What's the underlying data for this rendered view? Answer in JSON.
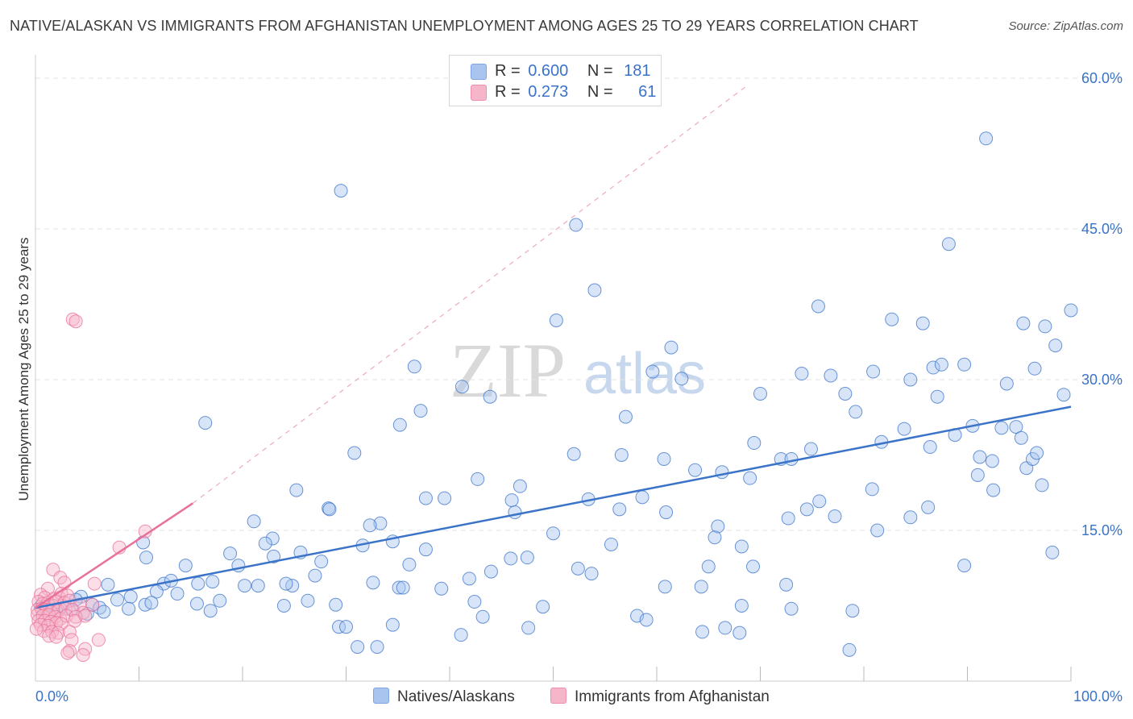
{
  "title": "NATIVE/ALASKAN VS IMMIGRANTS FROM AFGHANISTAN UNEMPLOYMENT AMONG AGES 25 TO 29 YEARS CORRELATION CHART",
  "source": "Source: ZipAtlas.com",
  "watermark": {
    "zip": "ZIP",
    "atlas": "atlas"
  },
  "legend": {
    "rows": [
      {
        "r_label": "R =",
        "r_value": "0.600",
        "n_label": "N =",
        "n_value": "181",
        "color": "#a9c5ef"
      },
      {
        "r_label": "R =",
        "r_value": "0.273",
        "n_label": "N =",
        "n_value": "61",
        "color": "#f6b6c9"
      }
    ],
    "bottom": [
      "Natives/Alaskans",
      "Immigrants from Afghanistan"
    ]
  },
  "chart_data": {
    "type": "scatter",
    "title": "NATIVE/ALASKAN VS IMMIGRANTS FROM AFGHANISTAN UNEMPLOYMENT AMONG AGES 25 TO 29 YEARS CORRELATION CHART",
    "xlabel": "",
    "ylabel": "Unemployment Among Ages 25 to 29 years",
    "xlim": [
      0,
      100
    ],
    "ylim": [
      0,
      60
    ],
    "x_tick_labels": [
      "0.0%",
      "100.0%"
    ],
    "y_ticks": [
      15,
      30,
      45,
      60
    ],
    "y_tick_labels": [
      "15.0%",
      "30.0%",
      "45.0%",
      "60.0%"
    ],
    "colors": {
      "natives": "#3b73c8",
      "natives_fill": "#a9c5ef",
      "afghan": "#e8709a",
      "afghan_fill": "#f6b6c9",
      "tick": "#3b73c8",
      "grid": "#e3e3e3"
    },
    "series": [
      {
        "name": "Natives/Alaskans",
        "r": 0.6,
        "n": 181,
        "trend": {
          "x": [
            0,
            100
          ],
          "y": [
            7.3,
            27.3
          ]
        },
        "points": [
          [
            91.8,
            54.0
          ],
          [
            29.5,
            48.8
          ],
          [
            52.2,
            45.4
          ],
          [
            88.2,
            43.5
          ],
          [
            54.0,
            38.9
          ],
          [
            75.6,
            37.3
          ],
          [
            50.3,
            35.9
          ],
          [
            82.7,
            36.0
          ],
          [
            85.7,
            35.6
          ],
          [
            95.4,
            35.6
          ],
          [
            97.5,
            35.3
          ],
          [
            100.0,
            36.9
          ],
          [
            98.5,
            33.4
          ],
          [
            61.4,
            33.2
          ],
          [
            36.6,
            31.3
          ],
          [
            41.2,
            29.3
          ],
          [
            43.9,
            28.3
          ],
          [
            57.0,
            26.3
          ],
          [
            35.2,
            25.5
          ],
          [
            37.2,
            26.9
          ],
          [
            16.4,
            25.7
          ],
          [
            59.6,
            30.8
          ],
          [
            62.4,
            30.1
          ],
          [
            70.0,
            28.6
          ],
          [
            74.0,
            30.6
          ],
          [
            76.8,
            30.4
          ],
          [
            78.2,
            28.6
          ],
          [
            80.9,
            30.8
          ],
          [
            84.5,
            30.0
          ],
          [
            86.7,
            31.2
          ],
          [
            87.5,
            31.5
          ],
          [
            89.7,
            31.5
          ],
          [
            96.5,
            31.1
          ],
          [
            99.3,
            28.5
          ],
          [
            93.8,
            29.6
          ],
          [
            79.2,
            26.8
          ],
          [
            83.9,
            25.1
          ],
          [
            87.1,
            28.3
          ],
          [
            88.8,
            24.5
          ],
          [
            90.5,
            25.4
          ],
          [
            93.3,
            25.2
          ],
          [
            94.7,
            25.3
          ],
          [
            95.2,
            24.2
          ],
          [
            69.4,
            23.7
          ],
          [
            74.9,
            23.1
          ],
          [
            72.0,
            22.1
          ],
          [
            73.0,
            22.1
          ],
          [
            81.7,
            23.8
          ],
          [
            86.4,
            23.3
          ],
          [
            91.2,
            22.3
          ],
          [
            92.4,
            21.9
          ],
          [
            95.7,
            21.2
          ],
          [
            96.3,
            22.1
          ],
          [
            96.7,
            22.7
          ],
          [
            30.8,
            22.7
          ],
          [
            52.0,
            22.6
          ],
          [
            56.6,
            22.5
          ],
          [
            60.7,
            22.1
          ],
          [
            63.7,
            21.0
          ],
          [
            66.3,
            20.8
          ],
          [
            69.0,
            20.2
          ],
          [
            42.7,
            20.1
          ],
          [
            46.8,
            19.4
          ],
          [
            91.0,
            20.5
          ],
          [
            92.5,
            19.0
          ],
          [
            97.2,
            19.5
          ],
          [
            80.8,
            19.1
          ],
          [
            25.2,
            19.0
          ],
          [
            37.7,
            18.2
          ],
          [
            39.5,
            18.2
          ],
          [
            46.0,
            18.0
          ],
          [
            53.4,
            18.1
          ],
          [
            58.6,
            18.3
          ],
          [
            75.7,
            17.9
          ],
          [
            74.5,
            17.1
          ],
          [
            86.2,
            17.3
          ],
          [
            28.3,
            17.2
          ],
          [
            28.4,
            17.1
          ],
          [
            56.4,
            17.1
          ],
          [
            60.9,
            16.8
          ],
          [
            46.3,
            16.8
          ],
          [
            77.2,
            16.4
          ],
          [
            72.7,
            16.2
          ],
          [
            84.5,
            16.3
          ],
          [
            21.1,
            15.9
          ],
          [
            33.3,
            15.7
          ],
          [
            32.3,
            15.5
          ],
          [
            65.9,
            15.4
          ],
          [
            81.3,
            15.0
          ],
          [
            50.0,
            14.7
          ],
          [
            65.6,
            14.3
          ],
          [
            10.4,
            13.8
          ],
          [
            22.9,
            14.2
          ],
          [
            22.2,
            13.7
          ],
          [
            31.6,
            13.5
          ],
          [
            34.5,
            13.9
          ],
          [
            55.6,
            13.6
          ],
          [
            68.2,
            13.4
          ],
          [
            37.7,
            13.1
          ],
          [
            18.8,
            12.7
          ],
          [
            23.0,
            12.4
          ],
          [
            25.6,
            12.8
          ],
          [
            10.7,
            12.3
          ],
          [
            45.9,
            12.2
          ],
          [
            47.5,
            12.3
          ],
          [
            98.2,
            12.8
          ],
          [
            19.6,
            11.5
          ],
          [
            27.6,
            11.9
          ],
          [
            14.5,
            11.5
          ],
          [
            36.1,
            11.6
          ],
          [
            89.7,
            11.5
          ],
          [
            65.0,
            11.4
          ],
          [
            69.3,
            11.4
          ],
          [
            52.4,
            11.2
          ],
          [
            53.7,
            10.7
          ],
          [
            44.0,
            10.9
          ],
          [
            27.0,
            10.5
          ],
          [
            12.4,
            9.7
          ],
          [
            15.7,
            9.7
          ],
          [
            17.1,
            9.9
          ],
          [
            7.0,
            9.6
          ],
          [
            13.1,
            10.0
          ],
          [
            20.2,
            9.5
          ],
          [
            21.5,
            9.5
          ],
          [
            24.8,
            9.5
          ],
          [
            24.2,
            9.7
          ],
          [
            32.6,
            9.8
          ],
          [
            35.1,
            9.3
          ],
          [
            35.5,
            9.3
          ],
          [
            39.2,
            9.2
          ],
          [
            41.9,
            10.2
          ],
          [
            60.8,
            9.4
          ],
          [
            64.3,
            9.4
          ],
          [
            72.5,
            9.6
          ],
          [
            11.7,
            8.9
          ],
          [
            13.7,
            8.7
          ],
          [
            9.2,
            8.4
          ],
          [
            4.4,
            8.4
          ],
          [
            3.9,
            8.1
          ],
          [
            7.9,
            8.1
          ],
          [
            5.5,
            7.6
          ],
          [
            10.6,
            7.6
          ],
          [
            11.2,
            7.8
          ],
          [
            15.6,
            7.7
          ],
          [
            17.8,
            8.0
          ],
          [
            6.2,
            7.3
          ],
          [
            9.0,
            7.2
          ],
          [
            2.6,
            7.5
          ],
          [
            1.2,
            7.6
          ],
          [
            0.5,
            7.4
          ],
          [
            2.0,
            7.0
          ],
          [
            3.5,
            7.1
          ],
          [
            5.0,
            6.7
          ],
          [
            6.6,
            6.9
          ],
          [
            16.9,
            7.0
          ],
          [
            24.0,
            7.5
          ],
          [
            26.3,
            8.0
          ],
          [
            29.0,
            7.6
          ],
          [
            42.4,
            7.9
          ],
          [
            49.0,
            7.4
          ],
          [
            68.2,
            7.5
          ],
          [
            73.0,
            7.2
          ],
          [
            78.9,
            7.0
          ],
          [
            43.2,
            6.4
          ],
          [
            58.1,
            6.5
          ],
          [
            59.0,
            6.1
          ],
          [
            29.3,
            5.4
          ],
          [
            30.0,
            5.4
          ],
          [
            34.5,
            5.6
          ],
          [
            47.6,
            5.3
          ],
          [
            66.6,
            5.3
          ],
          [
            64.4,
            4.9
          ],
          [
            68.0,
            4.8
          ],
          [
            41.1,
            4.6
          ],
          [
            31.1,
            3.4
          ],
          [
            33.0,
            3.4
          ],
          [
            78.6,
            3.1
          ]
        ]
      },
      {
        "name": "Immigrants from Afghanistan",
        "r": 0.273,
        "n": 61,
        "trend": {
          "x": [
            0,
            15.2
          ],
          "y": [
            7.3,
            17.7
          ]
        },
        "trend_extension": {
          "x": [
            15.2,
            68.9
          ],
          "y": [
            17.7,
            59.4
          ]
        },
        "points": [
          [
            3.6,
            36.0
          ],
          [
            3.9,
            35.8
          ],
          [
            10.6,
            14.9
          ],
          [
            8.1,
            13.3
          ],
          [
            1.7,
            11.1
          ],
          [
            2.4,
            10.3
          ],
          [
            2.8,
            9.8
          ],
          [
            5.7,
            9.7
          ],
          [
            1.2,
            9.2
          ],
          [
            0.5,
            8.6
          ],
          [
            0.9,
            8.3
          ],
          [
            1.8,
            8.2
          ],
          [
            2.3,
            8.3
          ],
          [
            2.5,
            8.7
          ],
          [
            3.1,
            8.5
          ],
          [
            0.3,
            7.9
          ],
          [
            0.7,
            7.7
          ],
          [
            1.2,
            7.8
          ],
          [
            1.7,
            7.5
          ],
          [
            2.0,
            7.9
          ],
          [
            2.8,
            7.8
          ],
          [
            3.3,
            8.0
          ],
          [
            4.3,
            7.6
          ],
          [
            5.5,
            7.6
          ],
          [
            0.2,
            7.1
          ],
          [
            0.6,
            7.2
          ],
          [
            1.1,
            7.1
          ],
          [
            1.5,
            6.9
          ],
          [
            2.2,
            7.0
          ],
          [
            2.9,
            7.2
          ],
          [
            3.6,
            7.1
          ],
          [
            4.6,
            6.8
          ],
          [
            0.2,
            6.6
          ],
          [
            0.7,
            6.5
          ],
          [
            1.3,
            6.6
          ],
          [
            1.9,
            6.4
          ],
          [
            2.4,
            6.2
          ],
          [
            3.0,
            6.5
          ],
          [
            3.9,
            6.4
          ],
          [
            4.8,
            6.5
          ],
          [
            0.3,
            6.0
          ],
          [
            0.9,
            6.0
          ],
          [
            1.5,
            5.9
          ],
          [
            2.0,
            5.8
          ],
          [
            0.5,
            5.6
          ],
          [
            1.2,
            5.5
          ],
          [
            2.5,
            5.7
          ],
          [
            3.8,
            6.0
          ],
          [
            0.8,
            5.0
          ],
          [
            1.6,
            4.9
          ],
          [
            2.2,
            4.8
          ],
          [
            3.3,
            4.9
          ],
          [
            1.3,
            4.5
          ],
          [
            2.0,
            4.4
          ],
          [
            3.5,
            4.1
          ],
          [
            6.1,
            4.1
          ],
          [
            4.8,
            3.2
          ],
          [
            3.3,
            3.0
          ],
          [
            4.6,
            2.6
          ],
          [
            3.1,
            2.8
          ],
          [
            0.1,
            5.2
          ]
        ]
      }
    ]
  }
}
